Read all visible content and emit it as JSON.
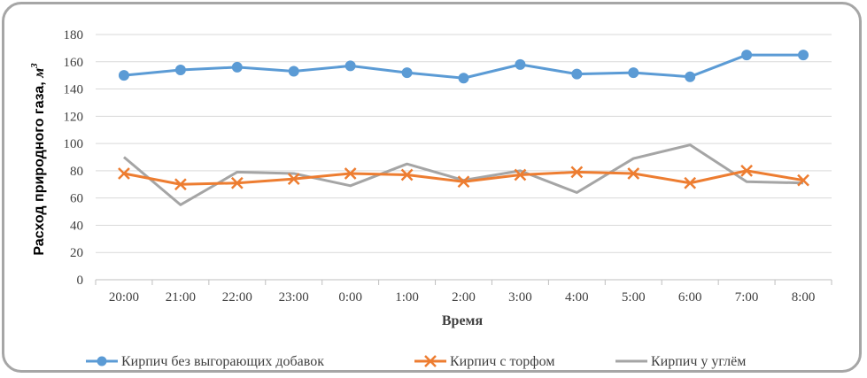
{
  "chart_data": {
    "type": "line",
    "categories": [
      "20:00",
      "21:00",
      "22:00",
      "23:00",
      "0:00",
      "1:00",
      "2:00",
      "3:00",
      "4:00",
      "5:00",
      "6:00",
      "7:00",
      "8:00"
    ],
    "series": [
      {
        "name": "Кирпич без выгорающих добавок",
        "values": [
          150,
          154,
          156,
          153,
          157,
          152,
          148,
          158,
          151,
          152,
          149,
          165,
          165
        ],
        "color": "#5b9bd5",
        "marker": "circle"
      },
      {
        "name": "Кирпич с торфом",
        "values": [
          78,
          70,
          71,
          74,
          78,
          77,
          72,
          77,
          79,
          78,
          71,
          80,
          73
        ],
        "color": "#ed7d31",
        "marker": "x"
      },
      {
        "name": "Кирпич у углём",
        "values": [
          90,
          55,
          79,
          78,
          69,
          85,
          73,
          80,
          64,
          89,
          99,
          72,
          71
        ],
        "color": "#a5a5a5",
        "marker": "none"
      }
    ],
    "xlabel": "Время",
    "ylabel": "Расход природного газа, ",
    "ylabel_unit": "м",
    "ylabel_unit_sup": "3",
    "ylim": [
      0,
      180
    ],
    "yticks": [
      "0",
      "20",
      "40",
      "60",
      "80",
      "100",
      "120",
      "140",
      "160",
      "180"
    ],
    "grid": true,
    "legend_position": "bottom"
  }
}
